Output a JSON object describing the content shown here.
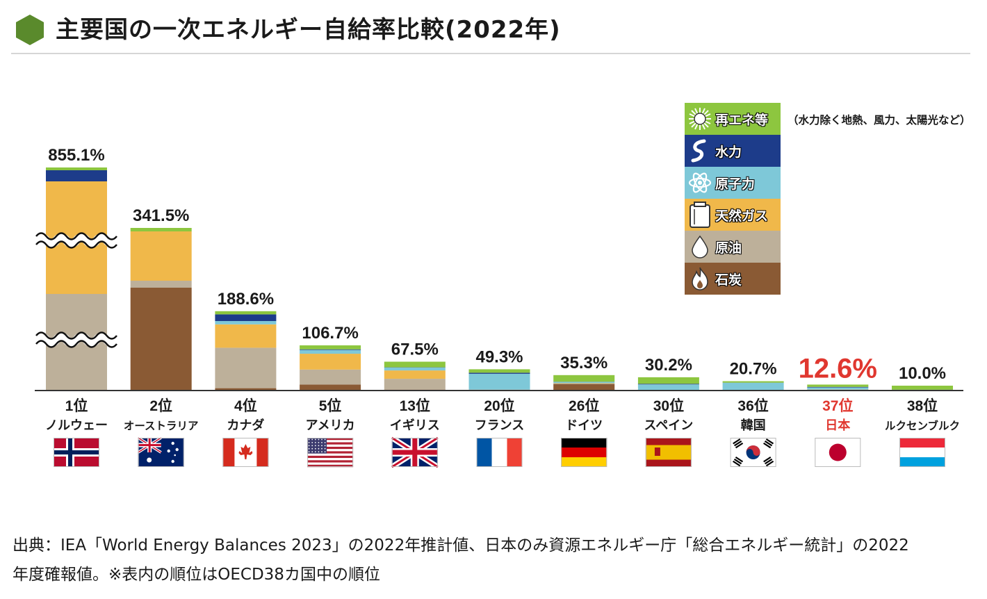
{
  "title": "主要国の一次エネルギー自給率比較(2022年)",
  "colors": {
    "title_icon": "#5a8a2c",
    "renewables": "#8dc63f",
    "hydro": "#1d3c8a",
    "nuclear": "#7ec8d8",
    "natural_gas": "#f0b84a",
    "oil": "#bdb09a",
    "coal": "#8a5a34",
    "baseline": "#333333",
    "japan_highlight": "#e0372f"
  },
  "legend": {
    "items": [
      {
        "key": "renewables",
        "label": "再エネ等",
        "icon": "sun-icon"
      },
      {
        "key": "hydro",
        "label": "水力",
        "icon": "water-wave-icon"
      },
      {
        "key": "nuclear",
        "label": "原子力",
        "icon": "atom-icon"
      },
      {
        "key": "natural_gas",
        "label": "天然ガス",
        "icon": "gas-tank-icon"
      },
      {
        "key": "oil",
        "label": "原油",
        "icon": "oil-drop-icon"
      },
      {
        "key": "coal",
        "label": "石炭",
        "icon": "flame-icon"
      }
    ],
    "note": "（水力除く地熱、風力、太陽光など）"
  },
  "chart_data": {
    "type": "bar",
    "stacked": true,
    "axis_break": true,
    "series_order": [
      "coal",
      "oil",
      "natural_gas",
      "nuclear",
      "hydro",
      "renewables"
    ],
    "categories": [
      {
        "rank": "1位",
        "country": "ノルウェー",
        "flag": "norway-flag-icon",
        "total": 855.1,
        "label": "855.1%",
        "stack": {
          "coal": 0,
          "oil": 290,
          "natural_gas": 420,
          "nuclear": 0,
          "hydro": 130,
          "renewables": 15.1
        }
      },
      {
        "rank": "2位",
        "country": "オーストラリア",
        "flag": "australia-flag-icon",
        "total": 341.5,
        "label": "341.5%",
        "stack": {
          "coal": 236,
          "oil": 10,
          "natural_gas": 90,
          "nuclear": 0,
          "hydro": 1.5,
          "renewables": 4
        }
      },
      {
        "rank": "4位",
        "country": "カナダ",
        "flag": "canada-flag-icon",
        "total": 188.6,
        "label": "188.6%",
        "stack": {
          "coal": 4,
          "oil": 97,
          "natural_gas": 56,
          "nuclear": 8,
          "hydro": 16,
          "renewables": 7.6
        }
      },
      {
        "rank": "5位",
        "country": "アメリカ",
        "flag": "usa-flag-icon",
        "total": 106.7,
        "label": "106.7%",
        "stack": {
          "coal": 12.6,
          "oil": 36,
          "natural_gas": 38,
          "nuclear": 9,
          "hydro": 1.5,
          "renewables": 9.6
        }
      },
      {
        "rank": "13位",
        "country": "イギリス",
        "flag": "uk-flag-icon",
        "total": 67.5,
        "label": "67.5%",
        "stack": {
          "coal": 0.5,
          "oil": 26,
          "natural_gas": 20,
          "nuclear": 7,
          "hydro": 0.5,
          "renewables": 13.5
        }
      },
      {
        "rank": "20位",
        "country": "フランス",
        "flag": "france-flag-icon",
        "total": 49.3,
        "label": "49.3%",
        "stack": {
          "coal": 0,
          "oil": 0.5,
          "natural_gas": 0,
          "nuclear": 38,
          "hydro": 2.5,
          "renewables": 8.3
        }
      },
      {
        "rank": "26位",
        "country": "ドイツ",
        "flag": "germany-flag-icon",
        "total": 35.3,
        "label": "35.3%",
        "stack": {
          "coal": 14,
          "oil": 1,
          "natural_gas": 1,
          "nuclear": 3,
          "hydro": 0.5,
          "renewables": 15.8
        }
      },
      {
        "rank": "30位",
        "country": "スペイン",
        "flag": "spain-flag-icon",
        "total": 30.2,
        "label": "30.2%",
        "stack": {
          "coal": 0,
          "oil": 0,
          "natural_gas": 0,
          "nuclear": 13,
          "hydro": 1.5,
          "renewables": 15.7
        }
      },
      {
        "rank": "36位",
        "country": "韓国",
        "flag": "korea-flag-icon",
        "total": 20.7,
        "label": "20.7%",
        "stack": {
          "coal": 0,
          "oil": 0,
          "natural_gas": 0,
          "nuclear": 17,
          "hydro": 0.2,
          "renewables": 3.5
        }
      },
      {
        "rank": "37位",
        "country": "日本",
        "flag": "japan-flag-icon",
        "total": 12.6,
        "label": "12.6%",
        "highlight": true,
        "stack": {
          "coal": 0,
          "oil": 0.3,
          "natural_gas": 0.4,
          "nuclear": 5,
          "hydro": 1.4,
          "renewables": 5.5
        }
      },
      {
        "rank": "38位",
        "country": "ルクセンブルク",
        "flag": "luxembourg-flag-icon",
        "total": 10.0,
        "label": "10.0%",
        "stack": {
          "coal": 0,
          "oil": 0,
          "natural_gas": 0,
          "nuclear": 0,
          "hydro": 0.3,
          "renewables": 9.7
        }
      }
    ]
  },
  "source": {
    "line1": "出典：IEA「World Energy Balances 2023」の2022年推計値、日本のみ資源エネルギー庁「総合エネルギー統計」の2022",
    "line2": "年度確報値。※表内の順位はOECD38カ国中の順位"
  }
}
